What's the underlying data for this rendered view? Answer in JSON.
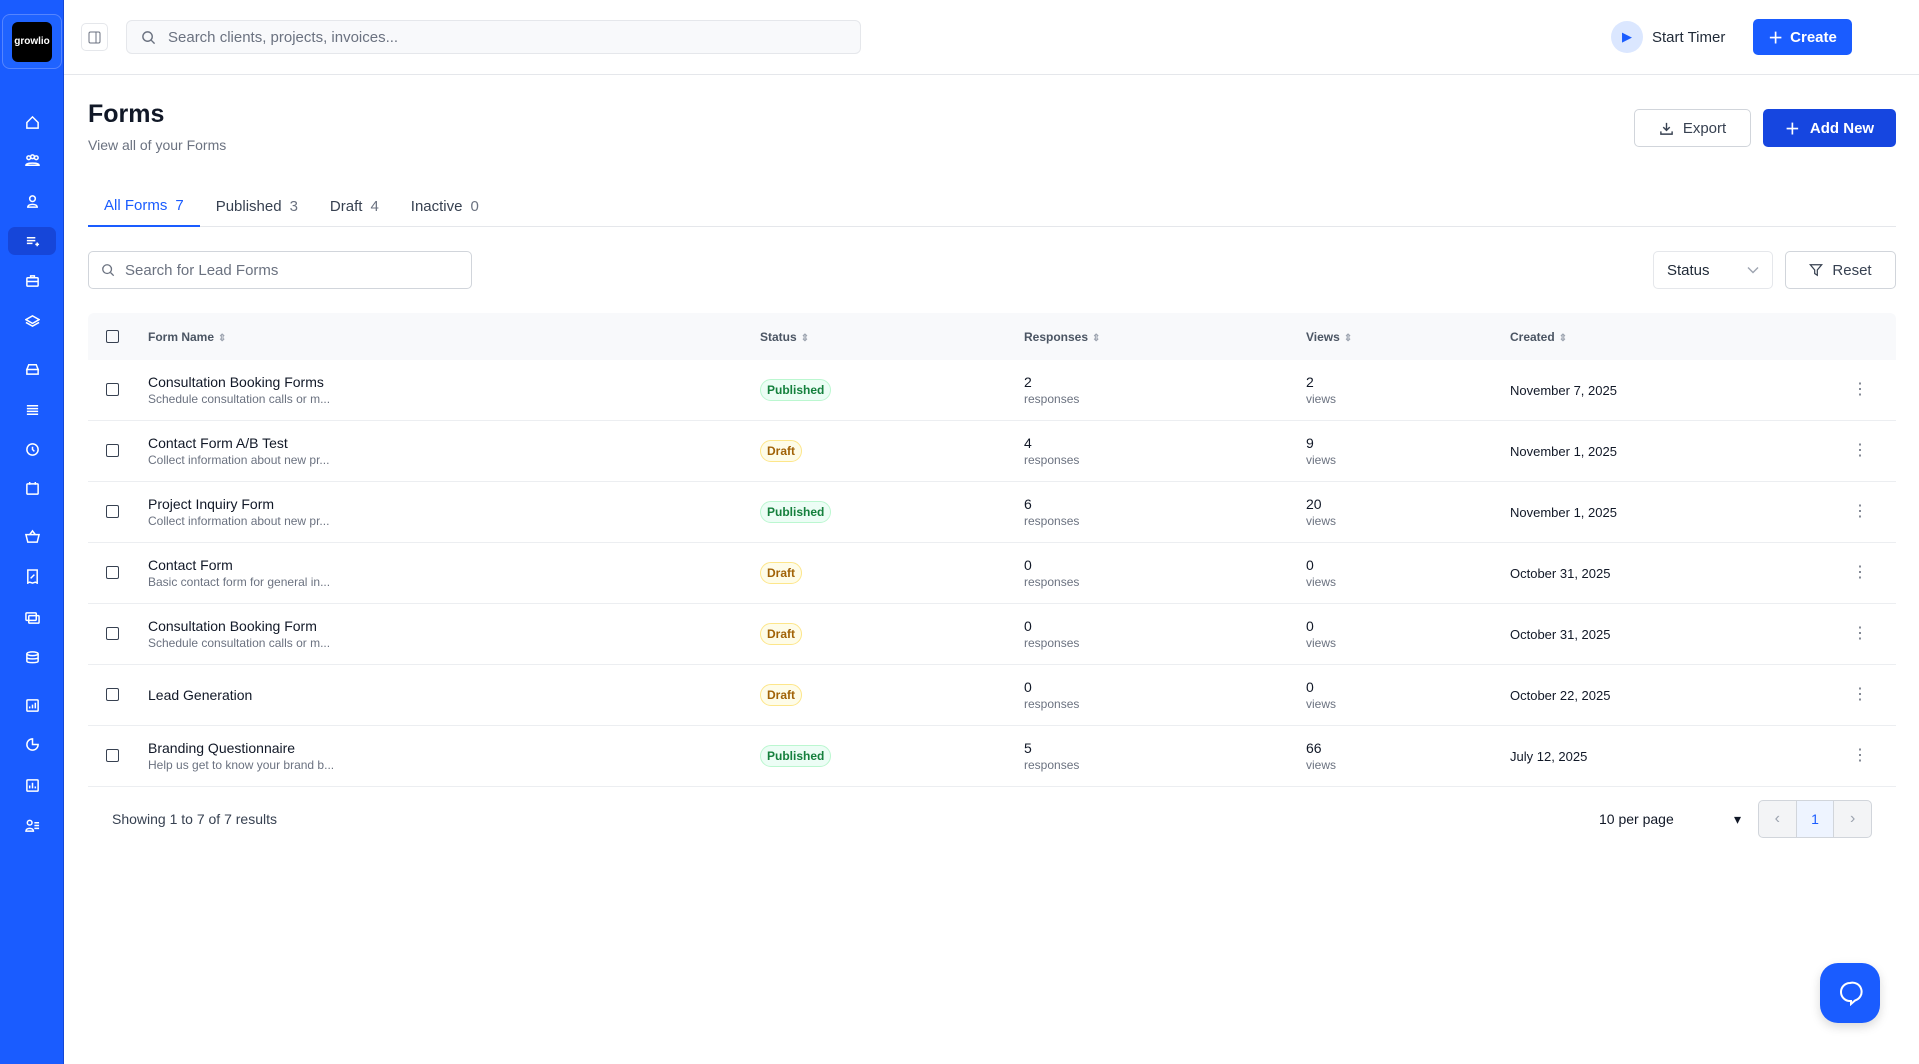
{
  "brand": {
    "logo_text": "growlio",
    "accent": "#1a5cff"
  },
  "topbar": {
    "search_placeholder": "Search clients, projects, invoices...",
    "start_timer": "Start Timer",
    "create": "Create"
  },
  "sidebar": {
    "items": [
      "home",
      "clients",
      "contacts",
      "forms",
      "projects",
      "layers",
      "inbox",
      "list",
      "time",
      "calendar",
      "basket",
      "receipt",
      "payments",
      "finance",
      "reports",
      "analytics",
      "charts",
      "team"
    ],
    "active": "forms"
  },
  "page": {
    "title": "Forms",
    "subtitle": "View all of your Forms",
    "export": "Export",
    "add_new": "Add New"
  },
  "tabs": [
    {
      "label": "All Forms",
      "count": "7"
    },
    {
      "label": "Published",
      "count": "3"
    },
    {
      "label": "Draft",
      "count": "4"
    },
    {
      "label": "Inactive",
      "count": "0"
    }
  ],
  "filters": {
    "search_placeholder": "Search for Lead Forms",
    "status": "Status",
    "reset": "Reset"
  },
  "table": {
    "headers": {
      "name": "Form Name",
      "status": "Status",
      "responses": "Responses",
      "views": "Views",
      "created": "Created"
    },
    "rows": [
      {
        "name": "Consultation Booking Forms",
        "desc": "Schedule consultation calls or m...",
        "status": "Published",
        "responses": "2",
        "responses_label": "responses",
        "views": "2",
        "views_label": "views",
        "created": "November 7, 2025"
      },
      {
        "name": "Contact Form A/B Test",
        "desc": "Collect information about new pr...",
        "status": "Draft",
        "responses": "4",
        "responses_label": "responses",
        "views": "9",
        "views_label": "views",
        "created": "November 1, 2025"
      },
      {
        "name": "Project Inquiry Form",
        "desc": "Collect information about new pr...",
        "status": "Published",
        "responses": "6",
        "responses_label": "responses",
        "views": "20",
        "views_label": "views",
        "created": "November 1, 2025"
      },
      {
        "name": "Contact Form",
        "desc": "Basic contact form for general in...",
        "status": "Draft",
        "responses": "0",
        "responses_label": "responses",
        "views": "0",
        "views_label": "views",
        "created": "October 31, 2025"
      },
      {
        "name": "Consultation Booking Form",
        "desc": "Schedule consultation calls or m...",
        "status": "Draft",
        "responses": "0",
        "responses_label": "responses",
        "views": "0",
        "views_label": "views",
        "created": "October 31, 2025"
      },
      {
        "name": "Lead Generation",
        "desc": "",
        "status": "Draft",
        "responses": "0",
        "responses_label": "responses",
        "views": "0",
        "views_label": "views",
        "created": "October 22, 2025"
      },
      {
        "name": "Branding Questionnaire",
        "desc": "Help us get to know your brand b...",
        "status": "Published",
        "responses": "5",
        "responses_label": "responses",
        "views": "66",
        "views_label": "views",
        "created": "July 12, 2025"
      }
    ]
  },
  "footer": {
    "showing": "Showing 1 to 7 of 7 results",
    "per_page": "10 per page",
    "current_page": "1"
  }
}
